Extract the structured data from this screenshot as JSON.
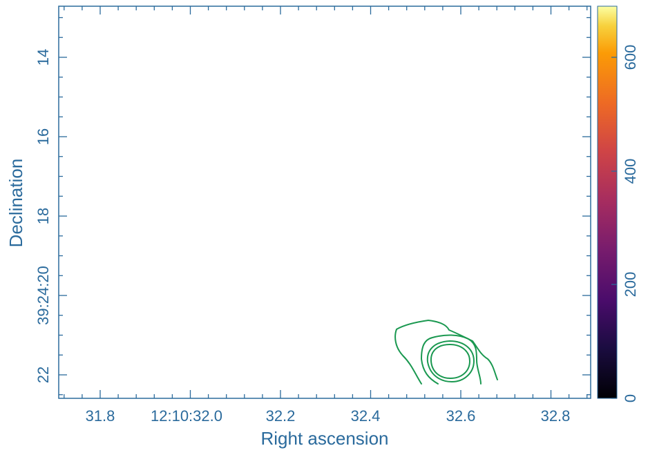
{
  "chart_data": {
    "type": "contour",
    "xlabel": "Right ascension",
    "ylabel": "Declination",
    "x_ticks": [
      "31.8",
      "12:10:32.0",
      "32.2",
      "32.4",
      "32.6",
      "32.8"
    ],
    "y_ticks": [
      "14",
      "16",
      "18",
      "39:24:20",
      "22"
    ],
    "colorbar": {
      "colormap": "inferno",
      "ticks": [
        "0",
        "200",
        "400",
        "600"
      ],
      "range": [
        0,
        690
      ]
    },
    "contours": {
      "color": "#1a9850",
      "levels": 4,
      "center_ra": "32.57",
      "center_dec": "21.8"
    },
    "colors": {
      "axis": "#2a6a9c",
      "contour": "#1a9850",
      "background": "#ffffff"
    }
  }
}
